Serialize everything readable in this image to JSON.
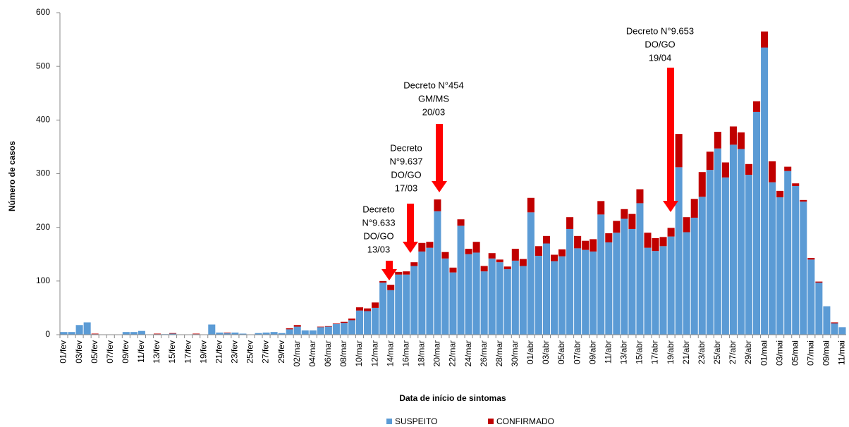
{
  "chart_data": {
    "type": "bar",
    "stacked": true,
    "ylabel": "Número de casos",
    "xlabel": "Data de início de sintomas",
    "categories": [
      "01/fev",
      null,
      "03/fev",
      null,
      "05/fev",
      null,
      "07/fev",
      null,
      "09/fev",
      null,
      "11/fev",
      null,
      "13/fev",
      null,
      "15/fev",
      null,
      "17/fev",
      null,
      "19/fev",
      null,
      "21/fev",
      null,
      "23/fev",
      null,
      "25/fev",
      null,
      "27/fev",
      null,
      "29/fev",
      null,
      "02/mar",
      null,
      "04/mar",
      null,
      "06/mar",
      null,
      "08/mar",
      null,
      "10/mar",
      null,
      "12/mar",
      null,
      "14/mar",
      null,
      "16/mar",
      null,
      "18/mar",
      null,
      "20/mar",
      null,
      "22/mar",
      null,
      "24/mar",
      null,
      "26/mar",
      null,
      "28/mar",
      null,
      "30/mar",
      null,
      "01/abr",
      null,
      "03/abr",
      null,
      "05/abr",
      null,
      "07/abr",
      null,
      "09/abr",
      null,
      "11/abr",
      null,
      "13/abr",
      null,
      "15/abr",
      null,
      "17/abr",
      null,
      "19/abr",
      null,
      "21/abr",
      null,
      "23/abr",
      null,
      "25/abr",
      null,
      "27/abr",
      null,
      "29/abr",
      null,
      "01/mai",
      null,
      "03/mai",
      null,
      "05/mai",
      null,
      "07/mai",
      null,
      "09/mai",
      null,
      "11/mai"
    ],
    "series": [
      {
        "name": "SUSPEITO",
        "color": "#5b9bd5",
        "values": [
          5,
          5,
          18,
          23,
          1,
          0,
          0,
          0,
          5,
          5,
          7,
          0,
          1,
          1,
          2,
          0,
          0,
          1,
          0,
          19,
          4,
          3,
          4,
          2,
          0,
          3,
          4,
          5,
          3,
          10,
          15,
          8,
          8,
          14,
          15,
          20,
          22,
          27,
          45,
          44,
          50,
          97,
          83,
          112,
          112,
          128,
          155,
          162,
          230,
          142,
          116,
          203,
          150,
          153,
          118,
          142,
          135,
          122,
          138,
          128,
          228,
          147,
          170,
          137,
          146,
          197,
          161,
          158,
          155,
          224,
          172,
          190,
          216,
          197,
          245,
          162,
          156,
          165,
          183,
          312,
          191,
          218,
          257,
          307,
          347,
          293,
          354,
          346,
          298,
          415,
          535,
          284,
          256,
          305,
          277,
          248,
          140,
          97,
          53,
          21,
          14
        ]
      },
      {
        "name": "CONFIRMADO",
        "color": "#c00000",
        "values": [
          0,
          0,
          0,
          0,
          1,
          0,
          0,
          0,
          0,
          0,
          0,
          0,
          1,
          0,
          1,
          0,
          0,
          1,
          0,
          0,
          0,
          1,
          0,
          0,
          0,
          0,
          0,
          0,
          0,
          2,
          3,
          0,
          0,
          1,
          1,
          1,
          2,
          3,
          6,
          5,
          10,
          3,
          10,
          5,
          6,
          7,
          16,
          11,
          22,
          12,
          9,
          12,
          10,
          20,
          10,
          10,
          5,
          5,
          22,
          13,
          27,
          18,
          14,
          12,
          13,
          22,
          23,
          17,
          23,
          25,
          17,
          22,
          18,
          28,
          26,
          28,
          24,
          17,
          16,
          62,
          28,
          35,
          46,
          34,
          31,
          28,
          34,
          31,
          20,
          20,
          30,
          39,
          12,
          8,
          5,
          3,
          3,
          2,
          0,
          2,
          0
        ]
      }
    ],
    "ylim": [
      0,
      600
    ],
    "yticks": [
      0,
      100,
      200,
      300,
      400,
      500,
      600
    ],
    "annotations": [
      {
        "lines": [
          "Decreto",
          "N°9.633",
          "DO/GO",
          "13/03"
        ]
      },
      {
        "lines": [
          "Decreto",
          "N°9.637",
          "DO/GO",
          "17/03"
        ]
      },
      {
        "lines": [
          "Decreto N°454",
          "GM/MS",
          "20/03"
        ]
      },
      {
        "lines": [
          "Decreto N°9.653",
          "DO/GO",
          "19/04"
        ]
      }
    ]
  }
}
